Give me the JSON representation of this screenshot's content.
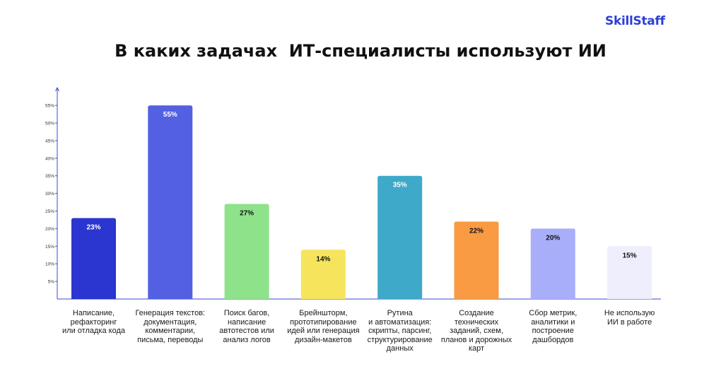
{
  "brand": "SkillStaff",
  "chart_data": {
    "type": "bar",
    "title": "В каких задачах  ИТ-специалисты используют ИИ",
    "xlabel": "",
    "ylabel": "",
    "ylim": [
      0,
      58
    ],
    "yticks": [
      "5%",
      "10%",
      "15%",
      "20%",
      "25%",
      "30%",
      "35%",
      "40%",
      "45%",
      "50%",
      "55%"
    ],
    "grid": false,
    "categories": [
      "Написание,\nрефакторинг\nили отладка кода",
      "Генерация текстов:\nдокументация,\nкомментарии,\nписьма, переводы",
      "Поиск багов,\nнаписание\nавтотестов или\nанализ логов",
      "Брейншторм,\nпрототипирование\nидей или генерация\nдизайн-макетов",
      "Рутина\nи автоматизация:\nскрипты, парсинг,\nструктурирование\nданных",
      "Создание\nтехнических\nзаданий, схем,\nпланов и дорожных\nкарт",
      "Сбор метрик,\nаналитики и\nпостроение\nдашбордов",
      "Не использую\nИИ в работе"
    ],
    "values": [
      23,
      55,
      27,
      14,
      35,
      22,
      20,
      15
    ],
    "data_labels": [
      "23%",
      "55%",
      "27%",
      "14%",
      "35%",
      "22%",
      "20%",
      "15%"
    ],
    "colors": [
      "#2b35cf",
      "#5460e2",
      "#8ee38a",
      "#f6e45d",
      "#3fa9c9",
      "#f89b43",
      "#a9aefb",
      "#eeeefc"
    ],
    "label_colors": [
      "#ffffff",
      "#ffffff",
      "#111111",
      "#111111",
      "#ffffff",
      "#111111",
      "#111111",
      "#111111"
    ]
  }
}
